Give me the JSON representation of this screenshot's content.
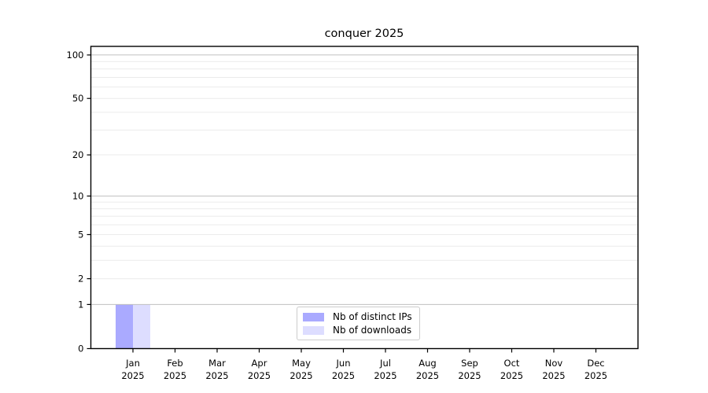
{
  "figure": {
    "title": "conquer 2025"
  },
  "chart_data": {
    "type": "bar",
    "title": "conquer 2025",
    "categories": [
      [
        "Jan",
        "2025"
      ],
      [
        "Feb",
        "2025"
      ],
      [
        "Mar",
        "2025"
      ],
      [
        "Apr",
        "2025"
      ],
      [
        "May",
        "2025"
      ],
      [
        "Jun",
        "2025"
      ],
      [
        "Jul",
        "2025"
      ],
      [
        "Aug",
        "2025"
      ],
      [
        "Sep",
        "2025"
      ],
      [
        "Oct",
        "2025"
      ],
      [
        "Nov",
        "2025"
      ],
      [
        "Dec",
        "2025"
      ]
    ],
    "series": [
      {
        "name": "Nb of distinct IPs",
        "color": "#aaaaff",
        "values": [
          1,
          0,
          0,
          0,
          0,
          0,
          0,
          0,
          0,
          0,
          0,
          0
        ]
      },
      {
        "name": "Nb of downloads",
        "color": "#ddddff",
        "values": [
          1,
          0,
          0,
          0,
          0,
          0,
          0,
          0,
          0,
          0,
          0,
          0
        ]
      }
    ],
    "xlabel": "",
    "ylabel": "",
    "y_axis": {
      "scale": "log10(value+1)",
      "range": [
        0,
        115
      ],
      "tick_values": [
        0,
        1,
        2,
        5,
        10,
        20,
        50,
        100
      ],
      "tick_labels": [
        "0",
        "1",
        "2",
        "5",
        "10",
        "20",
        "50",
        "100"
      ],
      "major_gridlines": [
        1,
        10,
        100
      ],
      "minor_gridlines": [
        2,
        3,
        4,
        5,
        6,
        7,
        8,
        9,
        20,
        30,
        40,
        50,
        60,
        70,
        80,
        90
      ]
    },
    "grid": true,
    "legend": {
      "position": "lower center",
      "entries": [
        "Nb of distinct IPs",
        "Nb of downloads"
      ]
    },
    "colors": {
      "major_grid": "#c0c0c0",
      "minor_grid": "#ebebeb",
      "axis": "#000000",
      "text": "#000000",
      "legend_border": "#cccccc"
    }
  }
}
